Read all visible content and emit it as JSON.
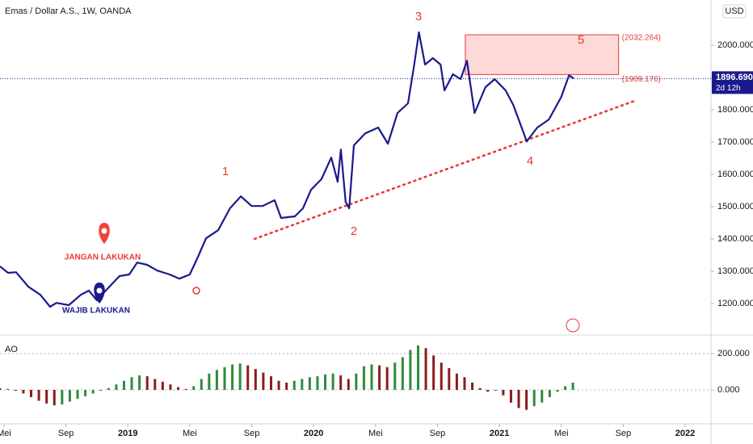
{
  "chart_data": [
    {
      "type": "line",
      "title": "Emas / Dollar A.S., 1W, OANDA",
      "currency": "USD",
      "x": [
        3.74,
        4.26,
        4.78,
        5.57,
        6.35,
        6.97,
        7.39,
        8.18,
        8.96,
        9.48,
        10.0,
        10.8,
        11.46,
        12.09,
        12.6,
        13.24,
        13.9,
        14.7,
        15.33,
        16.0,
        16.53,
        17.05,
        17.83,
        18.6,
        19.3,
        20.0,
        20.7,
        21.48,
        21.9,
        22.79,
        23.31,
        23.83,
        24.5,
        25.14,
        25.55,
        25.76,
        26.07,
        26.3,
        26.6,
        27.33,
        28.17,
        28.8,
        29.42,
        30.1,
        30.5,
        30.8,
        31.2,
        31.7,
        32.2,
        32.45,
        33.0,
        33.5,
        33.9,
        34.4,
        35.1,
        35.7,
        36.4,
        36.9,
        37.77,
        38.45,
        39.2,
        40.0,
        40.5,
        40.8
      ],
      "series": [
        {
          "color": "#1a1a8c",
          "values": [
            1315,
            1295,
            1297,
            1252,
            1227,
            1190,
            1202,
            1195,
            1227,
            1240,
            1210,
            1252,
            1285,
            1290,
            1327,
            1320,
            1302,
            1290,
            1277,
            1290,
            1345,
            1402,
            1427,
            1495,
            1532,
            1502,
            1502,
            1520,
            1465,
            1470,
            1495,
            1552,
            1585,
            1652,
            1577,
            1677,
            1515,
            1495,
            1690,
            1727,
            1745,
            1695,
            1790,
            1820,
            1940,
            2040,
            1940,
            1960,
            1940,
            1860,
            1910,
            1895,
            1952,
            1790,
            1870,
            1895,
            1860,
            1815,
            1702,
            1745,
            1770,
            1840,
            1907,
            1897
          ]
        }
      ],
      "last_price": {
        "value": 1896.69,
        "label": "1896.690"
      },
      "countdown": "2d 12h",
      "zone": [
        {
          "value": 2032.264,
          "label": "(2032.264)"
        },
        {
          "value": 1909.176,
          "label": "(1909.176)"
        }
      ],
      "zone_x": [
        33.8,
        43.7
      ],
      "trendline": {
        "x": [
          20.18,
          44.7
        ],
        "y": [
          1400,
          1827
        ],
        "color": "#e53935"
      },
      "annotations": [
        "1",
        "2",
        "3",
        "4",
        "5",
        "JANGAN LAKUKAN",
        "WAJIB LAKUKAN"
      ],
      "xlim": [
        3.74,
        49.67
      ],
      "ylim": [
        1110,
        2140
      ],
      "yticks": [
        {
          "value": 1200,
          "label": "1200.000"
        },
        {
          "value": 1300,
          "label": "1300.000"
        },
        {
          "value": 1400,
          "label": "1400.000"
        },
        {
          "value": 1500,
          "label": "1500.000"
        },
        {
          "value": 1600,
          "label": "1600.000"
        },
        {
          "value": 1700,
          "label": "1700.000"
        },
        {
          "value": 1800,
          "label": "1800.000"
        },
        {
          "value": 1900,
          "label": "1900.000"
        },
        {
          "value": 2000,
          "label": "2000.000"
        }
      ],
      "xticks": [
        {
          "value": 4,
          "label": "Mei"
        },
        {
          "value": 8,
          "label": "Sep"
        },
        {
          "value": 12,
          "label": "2019"
        },
        {
          "value": 16,
          "label": "Mei"
        },
        {
          "value": 20,
          "label": "Sep"
        },
        {
          "value": 24,
          "label": "2020"
        },
        {
          "value": 28,
          "label": "Mei"
        },
        {
          "value": 32,
          "label": "Sep"
        },
        {
          "value": 36,
          "label": "2021"
        },
        {
          "value": 40,
          "label": "Mei"
        },
        {
          "value": 44,
          "label": "Sep"
        },
        {
          "value": 48,
          "label": "2022"
        }
      ]
    },
    {
      "type": "bar",
      "title": "AO",
      "up_color": "#2e8b3a",
      "down_color": "#8b1c1c",
      "x": [
        3.75,
        4.25,
        4.75,
        5.25,
        5.75,
        6.25,
        6.75,
        7.25,
        7.75,
        8.25,
        8.75,
        9.25,
        9.75,
        10.25,
        10.75,
        11.25,
        11.75,
        12.25,
        12.75,
        13.25,
        13.75,
        14.25,
        14.75,
        15.25,
        15.75,
        16.25,
        16.75,
        17.25,
        17.75,
        18.25,
        18.75,
        19.25,
        19.75,
        20.25,
        20.75,
        21.25,
        21.75,
        22.25,
        22.75,
        23.25,
        23.75,
        24.25,
        24.75,
        25.25,
        25.75,
        26.25,
        26.75,
        27.25,
        27.75,
        28.25,
        28.75,
        29.25,
        29.75,
        30.25,
        30.75,
        31.25,
        31.75,
        32.25,
        32.75,
        33.25,
        33.75,
        34.25,
        34.75,
        35.25,
        35.75,
        36.25,
        36.75,
        37.25,
        37.75,
        38.25,
        38.75,
        39.25,
        39.75,
        40.25,
        40.75
      ],
      "values": [
        10,
        5,
        -5,
        -20,
        -40,
        -60,
        -75,
        -85,
        -80,
        -65,
        -50,
        -35,
        -20,
        -5,
        10,
        30,
        50,
        70,
        80,
        75,
        60,
        45,
        30,
        15,
        5,
        20,
        60,
        90,
        110,
        125,
        140,
        145,
        135,
        115,
        95,
        75,
        50,
        40,
        50,
        60,
        70,
        75,
        85,
        90,
        80,
        60,
        90,
        130,
        140,
        135,
        125,
        150,
        180,
        220,
        245,
        230,
        190,
        150,
        120,
        90,
        70,
        40,
        10,
        -10,
        -5,
        -30,
        -70,
        -100,
        -110,
        -90,
        -70,
        -40,
        -10,
        20,
        40
      ],
      "xlim": [
        3.74,
        49.67
      ],
      "ylim": [
        -187,
        280
      ],
      "yticks": [
        {
          "value": 0,
          "label": "0.000"
        },
        {
          "value": 200,
          "label": "200.000"
        }
      ]
    }
  ]
}
